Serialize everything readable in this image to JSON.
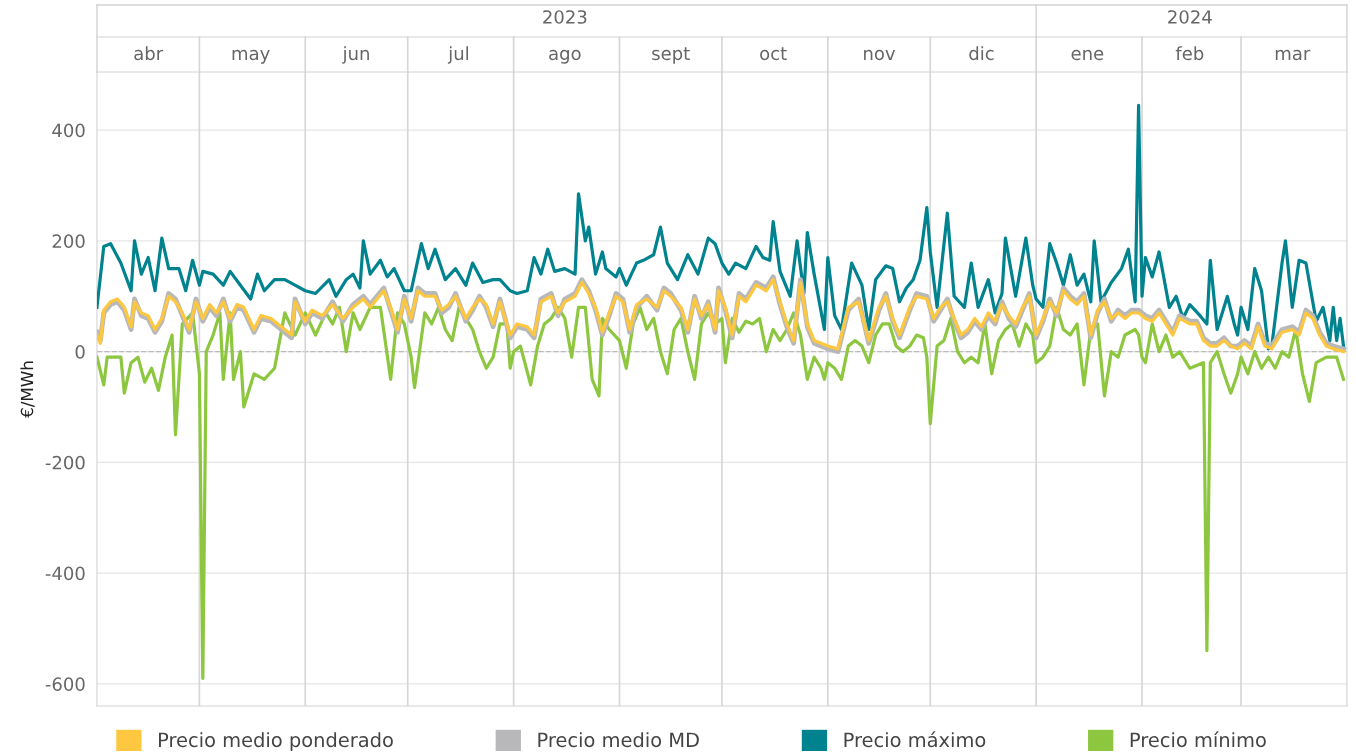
{
  "chart_data": {
    "type": "line",
    "ylabel": "€/MWh",
    "xlim": [
      "2023-04-01",
      "2024-04-01"
    ],
    "xticks": [
      {
        "value": "2023-04-16",
        "label": "abr"
      },
      {
        "value": "2023-05-16",
        "label": "may"
      },
      {
        "value": "2023-06-16",
        "label": "jun"
      },
      {
        "value": "2023-07-16",
        "label": "jul"
      },
      {
        "value": "2023-08-16",
        "label": "ago"
      },
      {
        "value": "2023-09-16",
        "label": "sept"
      },
      {
        "value": "2023-10-16",
        "label": "oct"
      },
      {
        "value": "2023-11-16",
        "label": "nov"
      },
      {
        "value": "2023-12-16",
        "label": "dic"
      },
      {
        "value": "2024-01-16",
        "label": "ene"
      },
      {
        "value": "2024-02-15",
        "label": "feb"
      },
      {
        "value": "2024-03-16",
        "label": "mar"
      }
    ],
    "x2lim": [
      "2023-04-01",
      "2024-04-01"
    ],
    "x2ticks": [
      {
        "value": "2023-08-16",
        "label": "2023"
      },
      {
        "value": "2024-01-01",
        "label": null
      },
      {
        "value": "2024-02-15",
        "label": "2024"
      }
    ],
    "ylim": [
      -640,
      505
    ],
    "yticks": [
      -600,
      -400,
      -200,
      0,
      200,
      400
    ],
    "grid": "y",
    "legend": "bottom",
    "line_style": "solid",
    "ref_lines": [
      {
        "axis": "y",
        "value": 0,
        "color": "#bbbbbb",
        "line_style": "dashed"
      },
      {
        "axis": "x",
        "value": "2023-05-01",
        "color": "#d6d6d6"
      },
      {
        "axis": "x",
        "value": "2023-06-01",
        "color": "#d6d6d6"
      },
      {
        "axis": "x",
        "value": "2023-07-01",
        "color": "#d6d6d6"
      },
      {
        "axis": "x",
        "value": "2023-08-01",
        "color": "#d6d6d6"
      },
      {
        "axis": "x",
        "value": "2023-09-01",
        "color": "#d6d6d6"
      },
      {
        "axis": "x",
        "value": "2023-10-01",
        "color": "#d6d6d6"
      },
      {
        "axis": "x",
        "value": "2023-11-01",
        "color": "#d6d6d6"
      },
      {
        "axis": "x",
        "value": "2023-12-01",
        "color": "#d6d6d6"
      },
      {
        "axis": "x",
        "value": "2024-01-01",
        "color": "#d6d6d6"
      },
      {
        "axis": "x",
        "value": "2024-02-01",
        "color": "#d6d6d6"
      },
      {
        "axis": "x",
        "value": "2024-03-01",
        "color": "#d6d6d6"
      }
    ],
    "x": [
      "2023-04-01",
      "2023-04-02",
      "2023-04-03",
      "2023-04-05",
      "2023-04-07",
      "2023-04-09",
      "2023-04-11",
      "2023-04-12",
      "2023-04-14",
      "2023-04-16",
      "2023-04-18",
      "2023-04-20",
      "2023-04-22",
      "2023-04-24",
      "2023-04-26",
      "2023-04-28",
      "2023-04-30",
      "2023-05-02",
      "2023-05-04",
      "2023-05-06",
      "2023-05-08",
      "2023-05-10",
      "2023-05-12",
      "2023-05-14",
      "2023-05-17",
      "2023-05-19",
      "2023-05-22",
      "2023-05-25",
      "2023-05-28",
      "2023-05-29",
      "2023-06-01",
      "2023-06-03",
      "2023-06-06",
      "2023-06-09",
      "2023-06-12",
      "2023-06-15",
      "2023-06-18",
      "2023-06-20",
      "2023-06-22",
      "2023-06-24",
      "2023-06-26",
      "2023-06-28",
      "2023-06-30",
      "2023-07-02",
      "2023-07-04",
      "2023-07-06",
      "2023-07-09",
      "2023-07-11",
      "2023-07-13",
      "2023-07-15",
      "2023-07-18",
      "2023-07-20",
      "2023-07-22",
      "2023-07-24",
      "2023-07-26",
      "2023-07-28",
      "2023-07-31",
      "2023-08-02",
      "2023-08-05",
      "2023-08-07",
      "2023-08-09",
      "2023-08-12",
      "2023-08-14",
      "2023-08-16",
      "2023-08-19",
      "2023-08-21",
      "2023-08-23",
      "2023-08-25",
      "2023-08-27",
      "2023-08-29",
      "2023-08-31",
      "2023-09-02",
      "2023-09-04",
      "2023-09-06",
      "2023-09-09",
      "2023-09-12",
      "2023-09-14",
      "2023-09-16",
      "2023-09-19",
      "2023-09-21",
      "2023-09-23",
      "2023-09-25",
      "2023-09-27",
      "2023-09-29",
      "2023-09-30",
      "2023-10-02",
      "2023-10-04",
      "2023-10-06",
      "2023-10-08",
      "2023-10-11",
      "2023-10-14",
      "2023-10-16",
      "2023-10-18",
      "2023-10-20",
      "2023-10-22",
      "2023-10-24",
      "2023-10-26",
      "2023-10-28",
      "2023-10-30",
      "2023-11-01",
      "2023-11-04",
      "2023-11-07",
      "2023-11-10",
      "2023-11-13",
      "2023-11-16",
      "2023-11-18",
      "2023-11-20",
      "2023-11-22",
      "2023-11-25",
      "2023-11-27",
      "2023-11-30",
      "2023-12-02",
      "2023-12-04",
      "2023-12-06",
      "2023-12-08",
      "2023-12-10",
      "2023-12-12",
      "2023-12-14",
      "2023-12-16",
      "2023-12-18",
      "2023-12-20",
      "2023-12-22",
      "2023-12-24",
      "2023-12-26",
      "2023-12-28",
      "2023-12-30",
      "2024-01-01",
      "2024-01-03",
      "2024-01-05",
      "2024-01-07",
      "2024-01-09",
      "2024-01-11",
      "2024-01-13",
      "2024-01-15",
      "2024-01-17",
      "2024-01-19",
      "2024-01-21",
      "2024-01-23",
      "2024-01-25",
      "2024-01-27",
      "2024-01-29",
      "2024-01-31",
      "2024-02-02",
      "2024-02-04",
      "2024-02-06",
      "2024-02-08",
      "2024-02-10",
      "2024-02-12",
      "2024-02-15",
      "2024-02-17",
      "2024-02-19",
      "2024-02-21",
      "2024-02-23",
      "2024-02-25",
      "2024-02-27",
      "2024-02-29",
      "2024-03-02",
      "2024-03-04",
      "2024-03-06",
      "2024-03-08",
      "2024-03-10",
      "2024-03-13",
      "2024-03-16",
      "2024-03-18",
      "2024-03-20",
      "2024-03-22",
      "2024-03-24",
      "2024-03-26",
      "2024-03-28",
      "2024-03-31"
    ],
    "series": [
      {
        "name": "Precio medio ponderado",
        "color": "#fdc83f",
        "values": [
          30,
          15,
          75,
          90,
          95,
          80,
          45,
          90,
          70,
          65,
          40,
          60,
          100,
          90,
          70,
          40,
          90,
          60,
          85,
          70,
          90,
          60,
          85,
          80,
          40,
          65,
          60,
          45,
          30,
          90,
          55,
          75,
          65,
          85,
          60,
          80,
          95,
          80,
          95,
          110,
          80,
          40,
          95,
          60,
          110,
          100,
          100,
          75,
          85,
          100,
          60,
          80,
          95,
          85,
          50,
          90,
          30,
          50,
          45,
          30,
          90,
          100,
          70,
          90,
          100,
          125,
          105,
          80,
          35,
          70,
          100,
          90,
          40,
          85,
          95,
          80,
          110,
          100,
          80,
          40,
          95,
          65,
          85,
          40,
          110,
          80,
          30,
          100,
          90,
          120,
          110,
          130,
          90,
          50,
          20,
          125,
          50,
          20,
          15,
          10,
          5,
          80,
          90,
          20,
          80,
          100,
          60,
          30,
          80,
          100,
          95,
          60,
          80,
          90,
          60,
          30,
          40,
          60,
          45,
          70,
          55,
          85,
          65,
          50,
          80,
          100,
          30,
          60,
          90,
          70,
          110,
          95,
          85,
          100,
          30,
          75,
          90,
          60,
          70,
          60,
          70,
          70,
          60,
          55,
          70,
          50,
          30,
          60,
          50,
          50,
          20,
          10,
          10,
          20,
          10,
          5,
          15,
          5,
          45,
          10,
          5,
          35,
          40,
          30,
          70,
          60,
          30,
          10,
          5,
          0
        ]
      },
      {
        "name": "Precio medio MD",
        "color": "#b8b8ba",
        "values": [
          35,
          20,
          70,
          85,
          90,
          75,
          40,
          95,
          65,
          60,
          35,
          55,
          105,
          95,
          65,
          35,
          95,
          55,
          80,
          65,
          95,
          55,
          80,
          75,
          35,
          60,
          55,
          40,
          25,
          95,
          50,
          70,
          60,
          90,
          55,
          85,
          100,
          85,
          100,
          115,
          75,
          35,
          100,
          55,
          115,
          105,
          105,
          70,
          80,
          105,
          55,
          75,
          100,
          80,
          45,
          95,
          25,
          45,
          40,
          25,
          95,
          105,
          65,
          95,
          105,
          130,
          110,
          75,
          30,
          65,
          105,
          95,
          35,
          80,
          100,
          75,
          115,
          105,
          75,
          35,
          100,
          60,
          90,
          35,
          115,
          75,
          25,
          105,
          95,
          125,
          115,
          135,
          85,
          45,
          15,
          130,
          45,
          15,
          10,
          5,
          0,
          75,
          95,
          15,
          75,
          105,
          55,
          25,
          75,
          105,
          100,
          55,
          75,
          95,
          55,
          25,
          35,
          55,
          40,
          65,
          50,
          90,
          60,
          45,
          75,
          105,
          25,
          55,
          95,
          65,
          115,
          100,
          90,
          105,
          25,
          70,
          95,
          55,
          75,
          65,
          75,
          75,
          65,
          60,
          75,
          55,
          35,
          65,
          55,
          55,
          25,
          15,
          15,
          25,
          10,
          10,
          20,
          10,
          50,
          15,
          10,
          40,
          45,
          35,
          75,
          65,
          35,
          15,
          10,
          5
        ]
      },
      {
        "name": "Precio máximo",
        "color": "#00838f",
        "x": [
          "2023-04-01",
          "2023-04-03",
          "2023-04-05",
          "2023-04-08",
          "2023-04-11",
          "2023-04-12",
          "2023-04-14",
          "2023-04-16",
          "2023-04-18",
          "2023-04-20",
          "2023-04-22",
          "2023-04-25",
          "2023-04-27",
          "2023-04-29",
          "2023-05-01",
          "2023-05-02",
          "2023-05-05",
          "2023-05-08",
          "2023-05-10",
          "2023-05-13",
          "2023-05-16",
          "2023-05-18",
          "2023-05-20",
          "2023-05-23",
          "2023-05-26",
          "2023-05-29",
          "2023-06-01",
          "2023-06-04",
          "2023-06-08",
          "2023-06-10",
          "2023-06-13",
          "2023-06-15",
          "2023-06-17",
          "2023-06-18",
          "2023-06-20",
          "2023-06-23",
          "2023-06-25",
          "2023-06-27",
          "2023-06-30",
          "2023-07-02",
          "2023-07-05",
          "2023-07-07",
          "2023-07-09",
          "2023-07-12",
          "2023-07-15",
          "2023-07-18",
          "2023-07-20",
          "2023-07-23",
          "2023-07-26",
          "2023-07-28",
          "2023-07-31",
          "2023-08-02",
          "2023-08-05",
          "2023-08-07",
          "2023-08-09",
          "2023-08-11",
          "2023-08-13",
          "2023-08-16",
          "2023-08-19",
          "2023-08-20",
          "2023-08-22",
          "2023-08-23",
          "2023-08-25",
          "2023-08-27",
          "2023-08-28",
          "2023-08-31",
          "2023-09-01",
          "2023-09-03",
          "2023-09-06",
          "2023-09-08",
          "2023-09-11",
          "2023-09-13",
          "2023-09-15",
          "2023-09-18",
          "2023-09-21",
          "2023-09-24",
          "2023-09-27",
          "2023-09-29",
          "2023-10-01",
          "2023-10-03",
          "2023-10-05",
          "2023-10-08",
          "2023-10-11",
          "2023-10-13",
          "2023-10-15",
          "2023-10-16",
          "2023-10-18",
          "2023-10-21",
          "2023-10-23",
          "2023-10-25",
          "2023-10-26",
          "2023-10-28",
          "2023-10-31",
          "2023-11-01",
          "2023-11-03",
          "2023-11-05",
          "2023-11-08",
          "2023-11-11",
          "2023-11-13",
          "2023-11-15",
          "2023-11-18",
          "2023-11-20",
          "2023-11-22",
          "2023-11-24",
          "2023-11-26",
          "2023-11-28",
          "2023-11-30",
          "2023-12-01",
          "2023-12-03",
          "2023-12-06",
          "2023-12-08",
          "2023-12-11",
          "2023-12-13",
          "2023-12-15",
          "2023-12-18",
          "2023-12-20",
          "2023-12-22",
          "2023-12-23",
          "2023-12-26",
          "2023-12-29",
          "2023-12-31",
          "2024-01-01",
          "2024-01-03",
          "2024-01-05",
          "2024-01-07",
          "2024-01-09",
          "2024-01-11",
          "2024-01-13",
          "2024-01-15",
          "2024-01-17",
          "2024-01-18",
          "2024-01-20",
          "2024-01-23",
          "2024-01-26",
          "2024-01-28",
          "2024-01-30",
          "2024-01-31",
          "2024-02-01",
          "2024-02-02",
          "2024-02-04",
          "2024-02-06",
          "2024-02-09",
          "2024-02-11",
          "2024-02-13",
          "2024-02-15",
          "2024-02-18",
          "2024-02-20",
          "2024-02-21",
          "2024-02-23",
          "2024-02-26",
          "2024-02-28",
          "2024-02-29",
          "2024-03-01",
          "2024-03-03",
          "2024-03-05",
          "2024-03-07",
          "2024-03-09",
          "2024-03-10",
          "2024-03-13",
          "2024-03-14",
          "2024-03-16",
          "2024-03-18",
          "2024-03-20",
          "2024-03-23",
          "2024-03-25",
          "2024-03-27",
          "2024-03-28",
          "2024-03-29",
          "2024-03-30",
          "2024-03-31"
        ],
        "values": [
          80,
          190,
          195,
          160,
          110,
          200,
          140,
          170,
          110,
          205,
          150,
          150,
          110,
          165,
          120,
          145,
          140,
          120,
          145,
          120,
          95,
          140,
          110,
          130,
          130,
          120,
          110,
          105,
          130,
          100,
          130,
          140,
          115,
          200,
          140,
          165,
          135,
          150,
          110,
          110,
          195,
          150,
          185,
          130,
          150,
          120,
          160,
          125,
          130,
          130,
          110,
          105,
          110,
          170,
          140,
          185,
          145,
          150,
          140,
          285,
          200,
          225,
          140,
          180,
          150,
          135,
          150,
          120,
          160,
          165,
          175,
          225,
          160,
          130,
          175,
          140,
          205,
          195,
          160,
          140,
          160,
          150,
          190,
          170,
          165,
          235,
          145,
          100,
          200,
          105,
          215,
          140,
          40,
          170,
          65,
          40,
          160,
          120,
          40,
          130,
          155,
          150,
          90,
          115,
          130,
          165,
          260,
          180,
          80,
          250,
          100,
          80,
          160,
          80,
          130,
          70,
          105,
          205,
          100,
          205,
          120,
          95,
          80,
          195,
          160,
          120,
          175,
          120,
          140,
          90,
          200,
          90,
          125,
          150,
          185,
          90,
          445,
          100,
          170,
          135,
          180,
          80,
          100,
          60,
          85,
          65,
          50,
          165,
          40,
          100,
          50,
          30,
          80,
          40,
          150,
          110,
          5,
          10,
          160,
          200,
          80,
          165,
          160,
          55,
          80,
          20,
          80,
          20,
          60,
          10
        ]
      },
      {
        "name": "Precio mínimo",
        "color": "#8dc63f",
        "x": [
          "2023-04-01",
          "2023-04-03",
          "2023-04-04",
          "2023-04-08",
          "2023-04-09",
          "2023-04-11",
          "2023-04-13",
          "2023-04-15",
          "2023-04-17",
          "2023-04-19",
          "2023-04-21",
          "2023-04-23",
          "2023-04-24",
          "2023-04-26",
          "2023-04-29",
          "2023-05-01",
          "2023-05-02",
          "2023-05-03",
          "2023-05-05",
          "2023-05-07",
          "2023-05-08",
          "2023-05-10",
          "2023-05-11",
          "2023-05-13",
          "2023-05-14",
          "2023-05-17",
          "2023-05-20",
          "2023-05-23",
          "2023-05-26",
          "2023-05-29",
          "2023-06-01",
          "2023-06-04",
          "2023-06-07",
          "2023-06-09",
          "2023-06-11",
          "2023-06-13",
          "2023-06-15",
          "2023-06-17",
          "2023-06-20",
          "2023-06-23",
          "2023-06-26",
          "2023-06-28",
          "2023-06-30",
          "2023-07-02",
          "2023-07-03",
          "2023-07-06",
          "2023-07-08",
          "2023-07-10",
          "2023-07-12",
          "2023-07-14",
          "2023-07-16",
          "2023-07-18",
          "2023-07-20",
          "2023-07-22",
          "2023-07-24",
          "2023-07-26",
          "2023-07-28",
          "2023-07-30",
          "2023-07-31",
          "2023-08-01",
          "2023-08-03",
          "2023-08-06",
          "2023-08-08",
          "2023-08-10",
          "2023-08-12",
          "2023-08-14",
          "2023-08-16",
          "2023-08-18",
          "2023-08-20",
          "2023-08-22",
          "2023-08-24",
          "2023-08-26",
          "2023-08-27",
          "2023-08-29",
          "2023-09-01",
          "2023-09-03",
          "2023-09-05",
          "2023-09-07",
          "2023-09-09",
          "2023-09-11",
          "2023-09-13",
          "2023-09-15",
          "2023-09-17",
          "2023-09-19",
          "2023-09-21",
          "2023-09-23",
          "2023-09-25",
          "2023-09-27",
          "2023-09-29",
          "2023-10-01",
          "2023-10-02",
          "2023-10-04",
          "2023-10-06",
          "2023-10-08",
          "2023-10-10",
          "2023-10-12",
          "2023-10-14",
          "2023-10-16",
          "2023-10-18",
          "2023-10-20",
          "2023-10-22",
          "2023-10-24",
          "2023-10-26",
          "2023-10-28",
          "2023-10-30",
          "2023-10-31",
          "2023-11-01",
          "2023-11-03",
          "2023-11-05",
          "2023-11-07",
          "2023-11-09",
          "2023-11-11",
          "2023-11-13",
          "2023-11-15",
          "2023-11-17",
          "2023-11-19",
          "2023-11-21",
          "2023-11-23",
          "2023-11-25",
          "2023-11-27",
          "2023-11-29",
          "2023-11-30",
          "2023-12-01",
          "2023-12-03",
          "2023-12-05",
          "2023-12-07",
          "2023-12-09",
          "2023-12-11",
          "2023-12-13",
          "2023-12-15",
          "2023-12-17",
          "2023-12-19",
          "2023-12-21",
          "2023-12-23",
          "2023-12-25",
          "2023-12-27",
          "2023-12-29",
          "2023-12-31",
          "2024-01-01",
          "2024-01-03",
          "2024-01-05",
          "2024-01-07",
          "2024-01-09",
          "2024-01-11",
          "2024-01-13",
          "2024-01-15",
          "2024-01-17",
          "2024-01-19",
          "2024-01-21",
          "2024-01-23",
          "2024-01-25",
          "2024-01-27",
          "2024-01-30",
          "2024-01-31",
          "2024-02-01",
          "2024-02-02",
          "2024-02-04",
          "2024-02-06",
          "2024-02-08",
          "2024-02-10",
          "2024-02-12",
          "2024-02-15",
          "2024-02-19",
          "2024-02-20",
          "2024-02-21",
          "2024-02-23",
          "2024-02-25",
          "2024-02-27",
          "2024-02-29",
          "2024-03-01",
          "2024-03-03",
          "2024-03-05",
          "2024-03-07",
          "2024-03-09",
          "2024-03-11",
          "2024-03-13",
          "2024-03-15",
          "2024-03-17",
          "2024-03-19",
          "2024-03-21",
          "2024-03-23",
          "2024-03-26",
          "2024-03-29",
          "2024-03-31"
        ],
        "values": [
          -10,
          -60,
          -10,
          -10,
          -75,
          -20,
          -10,
          -55,
          -30,
          -70,
          -10,
          30,
          -150,
          50,
          70,
          -40,
          -590,
          0,
          30,
          70,
          -50,
          70,
          -50,
          0,
          -100,
          -40,
          -50,
          -30,
          70,
          30,
          70,
          30,
          70,
          50,
          80,
          0,
          70,
          40,
          80,
          80,
          -50,
          70,
          50,
          -10,
          -65,
          70,
          50,
          80,
          40,
          20,
          80,
          60,
          40,
          0,
          -30,
          -10,
          50,
          50,
          -30,
          0,
          10,
          -60,
          10,
          50,
          60,
          80,
          60,
          -10,
          80,
          80,
          -50,
          -80,
          60,
          40,
          20,
          -30,
          50,
          80,
          40,
          60,
          0,
          -40,
          40,
          60,
          0,
          -50,
          50,
          70,
          50,
          60,
          -20,
          60,
          35,
          55,
          50,
          60,
          0,
          40,
          20,
          40,
          70,
          30,
          -50,
          -10,
          -30,
          -50,
          -20,
          -30,
          -50,
          10,
          20,
          10,
          -20,
          30,
          50,
          50,
          10,
          0,
          10,
          30,
          25,
          -10,
          -130,
          10,
          20,
          60,
          0,
          -20,
          -10,
          -20,
          50,
          -40,
          20,
          40,
          50,
          10,
          50,
          30,
          -20,
          -10,
          10,
          80,
          40,
          30,
          50,
          -60,
          40,
          50,
          -80,
          0,
          -10,
          30,
          40,
          30,
          -10,
          -20,
          50,
          0,
          30,
          -10,
          0,
          -30,
          -20,
          -540,
          -20,
          0,
          -40,
          -75,
          -40,
          -10,
          -40,
          0,
          -30,
          -10,
          -30,
          0,
          -10,
          40,
          -40,
          -90,
          -20,
          -10,
          -10,
          -50
        ]
      }
    ]
  }
}
